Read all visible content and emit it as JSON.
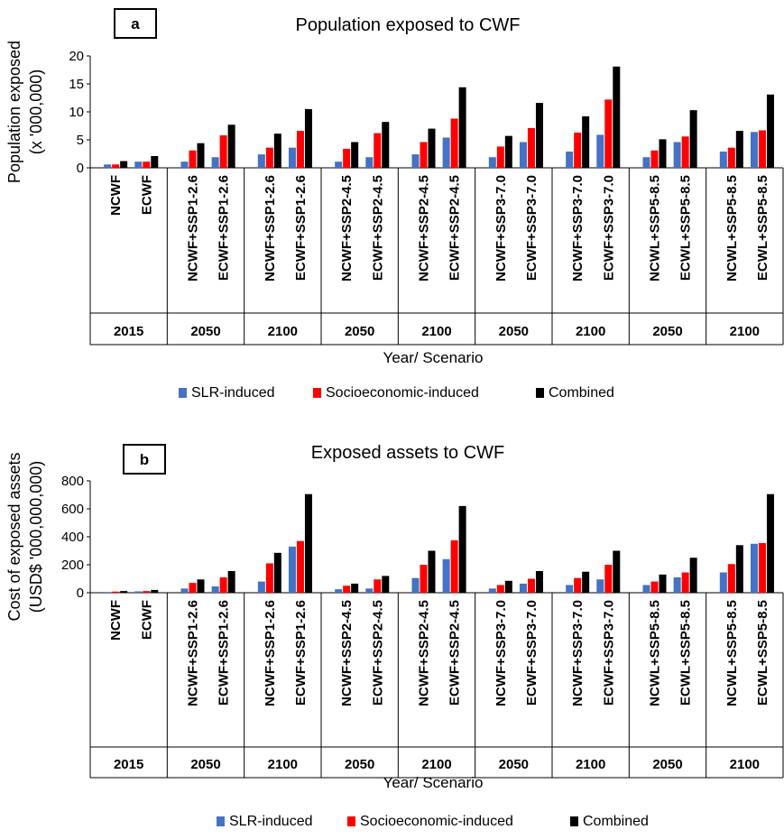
{
  "colors": {
    "slr": "#4472C4",
    "socio": "#FF0000",
    "combined": "#000000"
  },
  "legend": [
    "SLR-induced",
    "Socioeconomic-induced",
    "Combined"
  ],
  "chart_data": [
    {
      "type": "bar",
      "panel_label": "a",
      "title": "Population exposed to CWF",
      "ylabel_lines": [
        "Population exposed",
        "(x '000,000)"
      ],
      "xlabel": "Year/ Scenario",
      "ylim": [
        0,
        20
      ],
      "yticks": [
        0,
        5,
        10,
        15,
        20
      ],
      "grid": false,
      "legend_position": "bottom",
      "groups": [
        {
          "year": "2015",
          "categories": [
            "NCWF",
            "ECWF"
          ]
        },
        {
          "year": "2050",
          "categories": [
            "NCWF+SSP1-2.6",
            "ECWF+SSP1-2.6"
          ]
        },
        {
          "year": "2100",
          "categories": [
            "NCWF+SSP1-2.6",
            "ECWF+SSP1-2.6"
          ]
        },
        {
          "year": "2050",
          "categories": [
            "NCWF+SSP2-4.5",
            "ECWF+SSP2-4.5"
          ]
        },
        {
          "year": "2100",
          "categories": [
            "NCWF+SSP2-4.5",
            "ECWF+SSP2-4.5"
          ]
        },
        {
          "year": "2050",
          "categories": [
            "NCWF+SSP3-7.0",
            "ECWF+SSP3-7.0"
          ]
        },
        {
          "year": "2100",
          "categories": [
            "NCWF+SSP3-7.0",
            "ECWF+SSP3-7.0"
          ]
        },
        {
          "year": "2050",
          "categories": [
            "NCWL+SSP5-8.5",
            "ECWL+SSP5-8.5"
          ]
        },
        {
          "year": "2100",
          "categories": [
            "NCWL+SSP5-8.5",
            "ECWL+SSP5-8.5"
          ]
        }
      ],
      "series": [
        {
          "name": "SLR-induced",
          "values": [
            0.6,
            1.1,
            1.1,
            1.9,
            2.4,
            3.6,
            1.1,
            1.9,
            2.4,
            5.4,
            1.9,
            4.6,
            2.9,
            5.9,
            1.9,
            4.6,
            2.9,
            6.4
          ]
        },
        {
          "name": "Socioeconomic-induced",
          "values": [
            0.6,
            1.1,
            3.1,
            5.8,
            3.6,
            6.6,
            3.4,
            6.2,
            4.6,
            8.8,
            3.8,
            7.1,
            6.3,
            12.2,
            3.1,
            5.6,
            3.6,
            6.7
          ]
        },
        {
          "name": "Combined",
          "values": [
            1.2,
            2.1,
            4.4,
            7.7,
            6.1,
            10.5,
            4.6,
            8.2,
            7.0,
            14.4,
            5.7,
            11.6,
            9.2,
            18.1,
            5.1,
            10.3,
            6.6,
            13.1
          ]
        }
      ]
    },
    {
      "type": "bar",
      "panel_label": "b",
      "title": "Exposed assets to CWF",
      "ylabel_lines": [
        "Cost of exposed assets",
        "(USD$ '000,000,000)"
      ],
      "xlabel": "Year/ Scenario",
      "ylim": [
        0,
        800
      ],
      "yticks": [
        0,
        200,
        400,
        600,
        800
      ],
      "grid": false,
      "legend_position": "bottom",
      "groups": [
        {
          "year": "2015",
          "categories": [
            "NCWF",
            "ECWF"
          ]
        },
        {
          "year": "2050",
          "categories": [
            "NCWF+SSP1-2.6",
            "ECWF+SSP1-2.6"
          ]
        },
        {
          "year": "2100",
          "categories": [
            "NCWF+SSP1-2.6",
            "ECWF+SSP1-2.6"
          ]
        },
        {
          "year": "2050",
          "categories": [
            "NCWF+SSP2-4.5",
            "ECWF+SSP2-4.5"
          ]
        },
        {
          "year": "2100",
          "categories": [
            "NCWF+SSP2-4.5",
            "ECWF+SSP2-4.5"
          ]
        },
        {
          "year": "2050",
          "categories": [
            "NCWF+SSP3-7.0",
            "ECWF+SSP3-7.0"
          ]
        },
        {
          "year": "2100",
          "categories": [
            "NCWF+SSP3-7.0",
            "ECWF+SSP3-7.0"
          ]
        },
        {
          "year": "2050",
          "categories": [
            "NCWL+SSP5-8.5",
            "ECWL+SSP5-8.5"
          ]
        },
        {
          "year": "2100",
          "categories": [
            "NCWL+SSP5-8.5",
            "ECWL+SSP5-8.5"
          ]
        }
      ],
      "series": [
        {
          "name": "SLR-induced",
          "values": [
            5,
            10,
            30,
            45,
            80,
            330,
            25,
            30,
            105,
            240,
            30,
            65,
            55,
            95,
            55,
            110,
            145,
            350
          ]
        },
        {
          "name": "Socioeconomic-induced",
          "values": [
            8,
            12,
            70,
            110,
            210,
            370,
            50,
            95,
            200,
            375,
            55,
            100,
            105,
            200,
            80,
            145,
            205,
            355
          ]
        },
        {
          "name": "Combined",
          "values": [
            12,
            20,
            95,
            155,
            285,
            705,
            65,
            120,
            300,
            620,
            85,
            155,
            150,
            300,
            130,
            250,
            340,
            705
          ]
        }
      ]
    }
  ]
}
